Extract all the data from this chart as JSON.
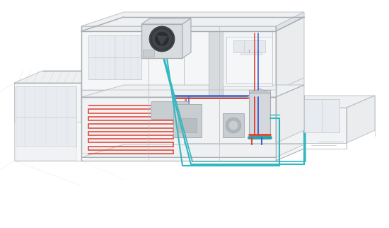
{
  "bg": "#ffffff",
  "lc": "#c0c4c8",
  "lc2": "#a8acb0",
  "lw_main": 0.7,
  "wall_face": "#f5f6f7",
  "wall_side": "#eaecee",
  "wall_top": "#eef0f2",
  "floor_inner": "#f0f2f4",
  "glass": "#e8ecf0",
  "shadow": "#e0e4e8",
  "pipe_hot": "#e04030",
  "pipe_cold": "#4060c8",
  "pipe_cyan": "#30b8c0",
  "pipe_lw": 1.5,
  "heat_pump_fill": "#d8dcdf",
  "tank_fill": "#d4d8dc",
  "appliance": "#c8cdd2",
  "dark_line": "#888c90"
}
